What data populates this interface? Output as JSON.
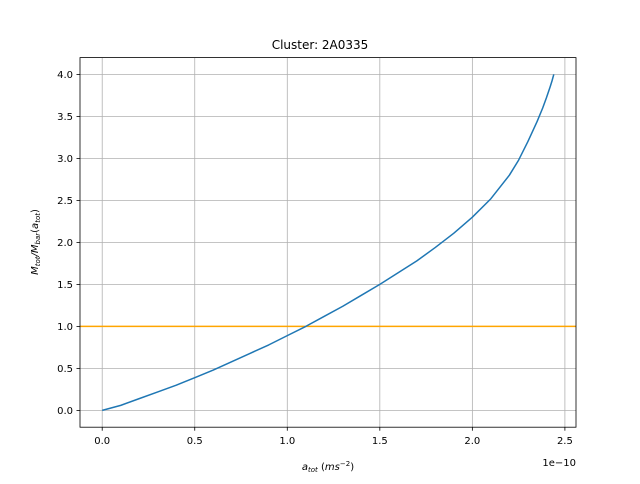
{
  "chart_data": {
    "type": "line",
    "title": "Cluster: 2A0335",
    "xlabel_main": "a",
    "xlabel_sub": "tot",
    "xlabel_units_pre": " (",
    "xlabel_units_main": "ms",
    "xlabel_units_sup": "−2",
    "xlabel_units_post": ")",
    "ylabel_parts": {
      "m1": "M",
      "s1": "tot",
      "slash": "/",
      "m2": "M",
      "s2": "bar",
      "open": "(",
      "m3": "a",
      "s3": "tot",
      "close": ")"
    },
    "x_offset_text": "1e−10",
    "xlim": [
      -0.12,
      2.56
    ],
    "ylim": [
      -0.2,
      4.2
    ],
    "x_ticks": [
      0.0,
      0.5,
      1.0,
      1.5,
      2.0,
      2.5
    ],
    "x_tick_labels": [
      "0.0",
      "0.5",
      "1.0",
      "1.5",
      "2.0",
      "2.5"
    ],
    "y_ticks": [
      0.0,
      0.5,
      1.0,
      1.5,
      2.0,
      2.5,
      3.0,
      3.5,
      4.0
    ],
    "y_tick_labels": [
      "0.0",
      "0.5",
      "1.0",
      "1.5",
      "2.0",
      "2.5",
      "3.0",
      "3.5",
      "4.0"
    ],
    "grid": true,
    "series": [
      {
        "color": "#1f77b4",
        "x": [
          0.0,
          0.1,
          0.2,
          0.3,
          0.4,
          0.5,
          0.6,
          0.7,
          0.8,
          0.9,
          1.0,
          1.1,
          1.2,
          1.3,
          1.4,
          1.5,
          1.6,
          1.7,
          1.8,
          1.9,
          2.0,
          2.1,
          2.2,
          2.25,
          2.3,
          2.35,
          2.38,
          2.4,
          2.42,
          2.43,
          2.435,
          2.44
        ],
        "y": [
          0.0,
          0.06,
          0.14,
          0.22,
          0.3,
          0.39,
          0.48,
          0.58,
          0.68,
          0.78,
          0.89,
          1.0,
          1.12,
          1.24,
          1.37,
          1.5,
          1.64,
          1.78,
          1.94,
          2.11,
          2.3,
          2.52,
          2.8,
          2.98,
          3.2,
          3.44,
          3.6,
          3.72,
          3.85,
          3.92,
          3.96,
          4.0
        ]
      }
    ],
    "hlines": [
      {
        "y": 1.0,
        "color": "orange"
      }
    ]
  }
}
